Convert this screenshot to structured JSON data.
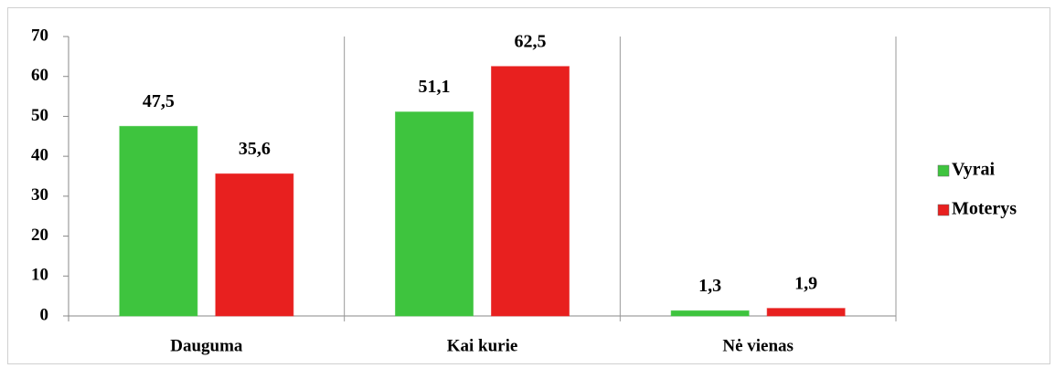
{
  "chart_data": {
    "type": "bar",
    "categories": [
      "Dauguma",
      "Kai kurie",
      "Nė vienas"
    ],
    "series": [
      {
        "name": "Vyrai",
        "color": "#3ec43e",
        "values": [
          47.5,
          51.1,
          1.3
        ],
        "value_labels": [
          "47,5",
          "51,1",
          "1,3"
        ]
      },
      {
        "name": "Moterys",
        "color": "#e8201f",
        "values": [
          35.6,
          62.5,
          1.9
        ],
        "value_labels": [
          "35,6",
          "62,5",
          "1,9"
        ]
      }
    ],
    "ylim": [
      0,
      70
    ],
    "yticks": [
      0,
      10,
      20,
      30,
      40,
      50,
      60,
      70
    ],
    "legend": "right"
  }
}
